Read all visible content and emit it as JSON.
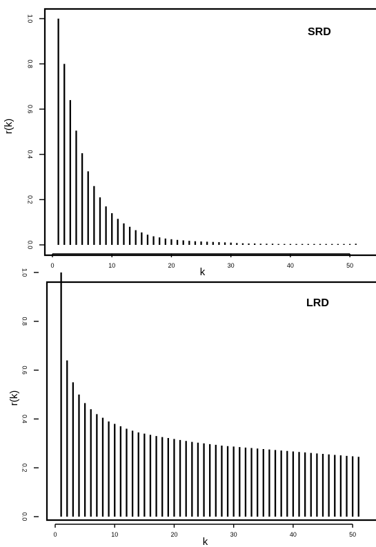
{
  "chart_data": [
    {
      "type": "bar",
      "annotation": "SRD",
      "xlabel": "k",
      "ylabel": "r(k)",
      "xlim": [
        0,
        53
      ],
      "ylim": [
        0,
        1.0
      ],
      "x_ticks": [
        0,
        10,
        20,
        30,
        40,
        50
      ],
      "y_ticks": [
        "0.0",
        "0.2",
        "0.4",
        "0.6",
        "0.8",
        "1.0"
      ],
      "x": [
        1,
        2,
        3,
        4,
        5,
        6,
        7,
        8,
        9,
        10,
        11,
        12,
        13,
        14,
        15,
        16,
        17,
        18,
        19,
        20,
        21,
        22,
        23,
        24,
        25,
        26,
        27,
        28,
        29,
        30,
        31,
        32,
        33,
        34,
        35,
        36,
        37,
        38,
        39,
        40,
        41,
        42,
        43,
        44,
        45,
        46,
        47,
        48,
        49,
        50,
        51
      ],
      "values": [
        1.0,
        0.8,
        0.64,
        0.505,
        0.405,
        0.325,
        0.26,
        0.21,
        0.17,
        0.14,
        0.115,
        0.095,
        0.08,
        0.065,
        0.055,
        0.045,
        0.038,
        0.033,
        0.028,
        0.025,
        0.022,
        0.02,
        0.018,
        0.016,
        0.015,
        0.014,
        0.013,
        0.012,
        0.011,
        0.01,
        0.008,
        0.007,
        0.006,
        0.006,
        0.005,
        0.005,
        0.005,
        0.004,
        0.004,
        0.004,
        0.004,
        0.004,
        0.004,
        0.004,
        0.004,
        0.004,
        0.004,
        0.004,
        0.004,
        0.004,
        0.005
      ]
    },
    {
      "type": "bar",
      "annotation": "LRD",
      "xlabel": "k",
      "ylabel": "r(k)",
      "xlim": [
        0,
        53
      ],
      "ylim": [
        0,
        1.0
      ],
      "x_ticks": [
        0,
        10,
        20,
        30,
        40,
        50
      ],
      "y_ticks": [
        "0.0",
        "0.2",
        "0.4",
        "0.6",
        "0.8",
        "1.0"
      ],
      "x": [
        1,
        2,
        3,
        4,
        5,
        6,
        7,
        8,
        9,
        10,
        11,
        12,
        13,
        14,
        15,
        16,
        17,
        18,
        19,
        20,
        21,
        22,
        23,
        24,
        25,
        26,
        27,
        28,
        29,
        30,
        31,
        32,
        33,
        34,
        35,
        36,
        37,
        38,
        39,
        40,
        41,
        42,
        43,
        44,
        45,
        46,
        47,
        48,
        49,
        50,
        51
      ],
      "values": [
        1.0,
        0.64,
        0.55,
        0.5,
        0.465,
        0.44,
        0.42,
        0.405,
        0.39,
        0.38,
        0.37,
        0.36,
        0.352,
        0.345,
        0.34,
        0.335,
        0.33,
        0.326,
        0.322,
        0.318,
        0.314,
        0.31,
        0.306,
        0.303,
        0.3,
        0.297,
        0.294,
        0.291,
        0.289,
        0.287,
        0.285,
        0.283,
        0.281,
        0.279,
        0.277,
        0.275,
        0.273,
        0.271,
        0.269,
        0.267,
        0.265,
        0.263,
        0.261,
        0.259,
        0.257,
        0.255,
        0.253,
        0.251,
        0.249,
        0.247,
        0.245
      ]
    }
  ]
}
